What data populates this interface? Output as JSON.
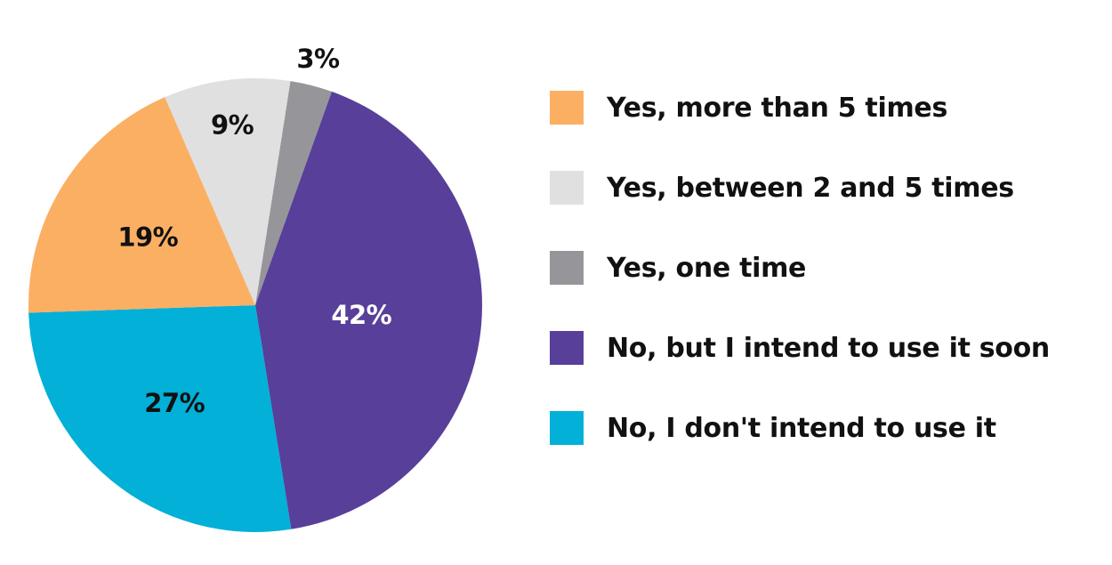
{
  "chart_data": {
    "type": "pie",
    "slices": [
      {
        "label": "Yes, more than 5 times",
        "value": 19,
        "value_label": "19%",
        "color": "#FBAF63",
        "label_color": "#111111"
      },
      {
        "label": "Yes, between 2 and 5 times",
        "value": 9,
        "value_label": "9%",
        "color": "#E0E0E0",
        "label_color": "#111111"
      },
      {
        "label": "Yes, one time",
        "value": 3,
        "value_label": "3%",
        "color": "#96969A",
        "label_color": "#111111"
      },
      {
        "label": "No, but I intend to use it soon",
        "value": 42,
        "value_label": "42%",
        "color": "#583F9A",
        "label_color": "#FFFFFF"
      },
      {
        "label": "No, I don't intend to use it",
        "value": 27,
        "value_label": "27%",
        "color": "#02B0D8",
        "label_color": "#111111"
      }
    ],
    "legend_position": "right"
  }
}
